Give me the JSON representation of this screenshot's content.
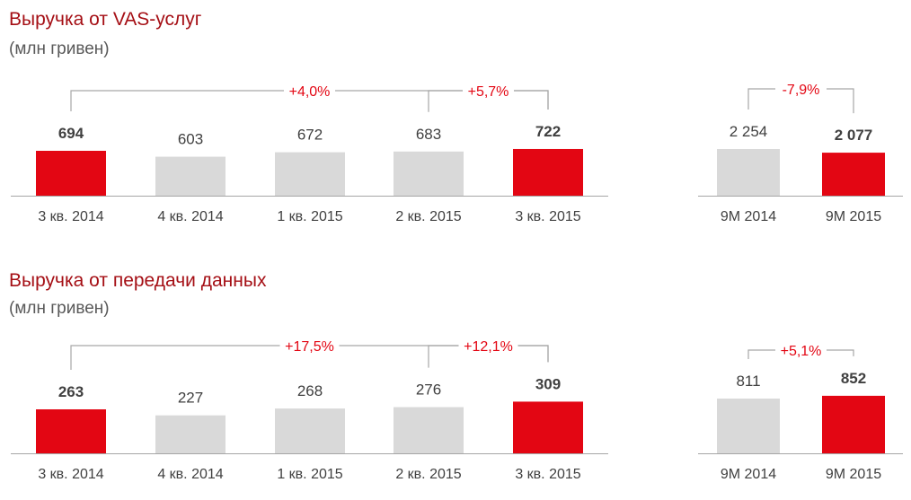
{
  "colors": {
    "highlight": "#e30613",
    "base": "#d9d9d9",
    "title": "#a50f15",
    "subtitle": "#595959",
    "label": "#404040",
    "bracket": "#a6a6a6",
    "change": "#e30613"
  },
  "chart_data": [
    {
      "type": "bar",
      "title": "Выручка от VAS-услуг",
      "subtitle": "(млн гривен)",
      "quarterly": {
        "categories": [
          "3 кв. 2014",
          "4 кв. 2014",
          "1 кв. 2015",
          "2 кв. 2015",
          "3 кв. 2015"
        ],
        "values": [
          694,
          603,
          672,
          683,
          722
        ],
        "labels": [
          "694",
          "603",
          "672",
          "683",
          "722"
        ],
        "highlight": [
          true,
          false,
          false,
          false,
          true
        ],
        "changes": [
          {
            "from": 0,
            "to": 4,
            "label": "+4,0%"
          },
          {
            "from": 3,
            "to": 4,
            "label": "+5,7%"
          }
        ]
      },
      "ytd": {
        "categories": [
          "9M 2014",
          "9M 2015"
        ],
        "values": [
          2254,
          2077
        ],
        "labels": [
          "2 254",
          "2 077"
        ],
        "highlight": [
          false,
          true
        ],
        "changes": [
          {
            "from": 0,
            "to": 1,
            "label": "-7,9%"
          }
        ]
      }
    },
    {
      "type": "bar",
      "title": "Выручка от передачи данных",
      "subtitle": "(млн гривен)",
      "quarterly": {
        "categories": [
          "3 кв. 2014",
          "4 кв. 2014",
          "1 кв. 2015",
          "2 кв. 2015",
          "3 кв. 2015"
        ],
        "values": [
          263,
          227,
          268,
          276,
          309
        ],
        "labels": [
          "263",
          "227",
          "268",
          "276",
          "309"
        ],
        "highlight": [
          true,
          false,
          false,
          false,
          true
        ],
        "changes": [
          {
            "from": 0,
            "to": 4,
            "label": "+17,5%"
          },
          {
            "from": 3,
            "to": 4,
            "label": "+12,1%"
          }
        ]
      },
      "ytd": {
        "categories": [
          "9M 2014",
          "9M 2015"
        ],
        "values": [
          811,
          852
        ],
        "labels": [
          "811",
          "852"
        ],
        "highlight": [
          false,
          true
        ],
        "changes": [
          {
            "from": 0,
            "to": 1,
            "label": "+5,1%"
          }
        ]
      }
    }
  ]
}
